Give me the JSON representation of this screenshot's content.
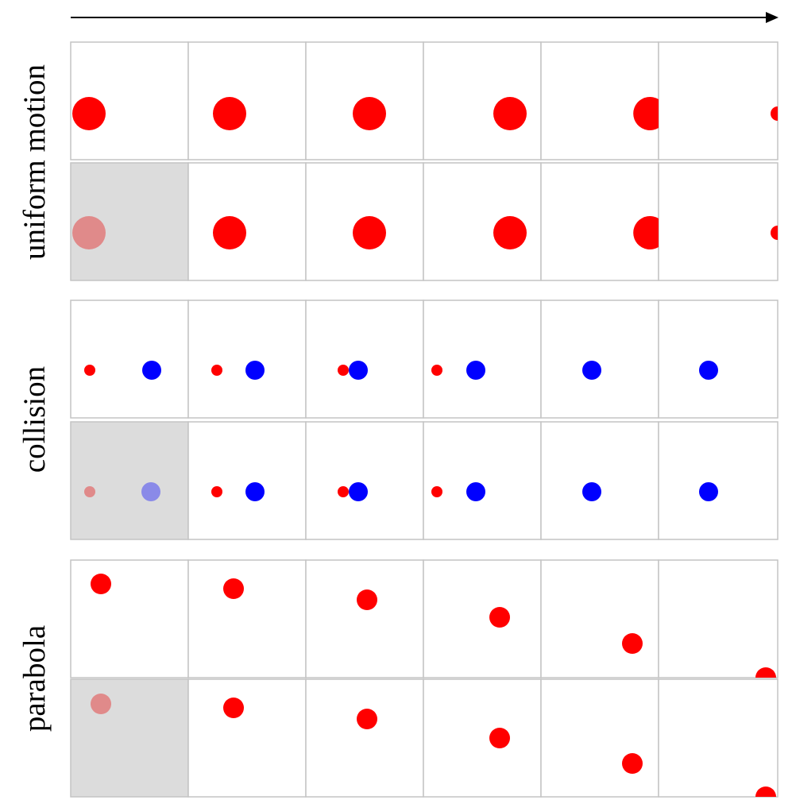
{
  "figure": {
    "direction_indicator": "time-arrow-right",
    "colors": {
      "red": "#ff0000",
      "blue": "#0000ff",
      "faded_red": "#e08a8a",
      "faded_blue": "#8a8ae8",
      "condition_bg": "#dcdcdc",
      "frame_border": "#c4c4c4",
      "arrow": "#000000"
    },
    "groups": [
      {
        "label": "uniform motion",
        "key": "uniform"
      },
      {
        "label": "collision",
        "key": "collision"
      },
      {
        "label": "parabola",
        "key": "parabola"
      }
    ]
  }
}
